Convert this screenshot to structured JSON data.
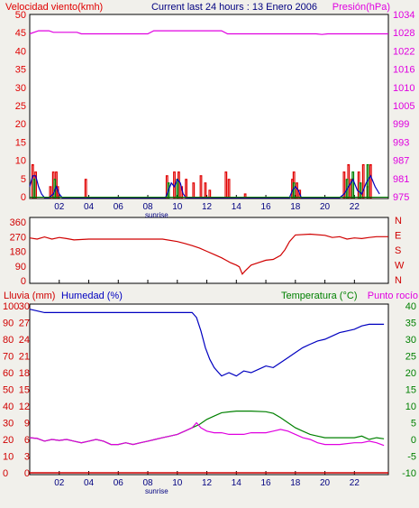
{
  "header": {
    "left_label": "Velocidad viento(kmh)",
    "title": "Current last 24 hours : 13 Enero 2006",
    "right_label": "Presión(hPa)"
  },
  "colors": {
    "wind": "#e00000",
    "wind_gust": "#008000",
    "wind_avg": "#0000c0",
    "pressure": "#e000e0",
    "direction": "#d00000",
    "humidity": "#0000c0",
    "temperature": "#008000",
    "dewpoint": "#e000e0",
    "rain": "#d00000",
    "plot_bg": "#ffffff",
    "page_bg": "#f1f0eb"
  },
  "x_axis": {
    "ticks": [
      "02",
      "04",
      "06",
      "08",
      "10",
      "12",
      "14",
      "16",
      "18",
      "20",
      "22"
    ],
    "tick_hours": [
      2,
      4,
      6,
      8,
      10,
      12,
      14,
      16,
      18,
      20,
      22
    ],
    "sunrise_label": "sunrise",
    "sunrise_hour": 8.6,
    "range": [
      0,
      24.3
    ]
  },
  "chart_data": [
    {
      "type": "line",
      "name_key": "wind_pressure",
      "left_axis": {
        "label": "Velocidad viento(kmh)",
        "ticks": [
          "0",
          "5",
          "10",
          "15",
          "20",
          "25",
          "30",
          "35",
          "40",
          "45",
          "50"
        ],
        "range": [
          0,
          50
        ]
      },
      "right_axis": {
        "label": "Presión(hPa)",
        "ticks": [
          "975",
          "981",
          "987",
          "993",
          "999",
          "1005",
          "1010",
          "1016",
          "1022",
          "1028",
          "1034"
        ],
        "range": [
          975,
          1034
        ]
      },
      "series": [
        {
          "name": "Presión(hPa)",
          "axis": "right",
          "x": [
            0,
            0.6,
            1.3,
            1.6,
            3.2,
            3.5,
            8.0,
            8.4,
            13.0,
            13.4,
            19.0,
            19.4,
            19.8,
            20.2,
            24.3
          ],
          "y": [
            1028,
            1029,
            1029,
            1028.5,
            1028.5,
            1028,
            1028,
            1029,
            1029,
            1028,
            1028,
            1028,
            1027.8,
            1028,
            1028
          ]
        },
        {
          "name": "wind-peak",
          "axis": "left",
          "kind": "bars",
          "x": [
            0.2,
            0.4,
            1.4,
            1.6,
            1.8,
            1.9,
            3.8,
            9.3,
            9.8,
            10.1,
            10.3,
            10.6,
            11.1,
            11.6,
            11.9,
            12.2,
            13.3,
            13.5,
            14.6,
            17.8,
            17.9,
            18.1,
            18.3,
            21.3,
            21.6,
            21.8,
            22.3,
            22.6,
            22.9,
            23.1
          ],
          "y": [
            9,
            7,
            3,
            7,
            7,
            3,
            5,
            6,
            7,
            7,
            3,
            5,
            4,
            6,
            4,
            2,
            7,
            5,
            1,
            5,
            7,
            4,
            2,
            7,
            9,
            5,
            7,
            9,
            3,
            9
          ]
        },
        {
          "name": "wind-gust",
          "axis": "left",
          "kind": "bars",
          "x": [
            0.3,
            1.7,
            9.4,
            10.0,
            17.9,
            21.5,
            21.9,
            22.4,
            22.9
          ],
          "y": [
            5,
            5,
            4,
            5,
            4,
            5,
            7,
            4,
            9
          ]
        },
        {
          "name": "wind-avg",
          "axis": "left",
          "x": [
            0,
            0.2,
            0.4,
            0.6,
            0.8,
            1.0,
            1.3,
            1.6,
            1.8,
            2.0,
            2.2,
            9.2,
            9.4,
            9.6,
            9.8,
            10.0,
            10.2,
            10.4,
            10.6,
            17.6,
            17.8,
            18.0,
            18.2,
            18.4,
            21.0,
            21.3,
            21.6,
            21.9,
            22.2,
            22.5,
            22.8,
            23.1,
            23.4,
            23.7
          ],
          "y": [
            3,
            6,
            6,
            3,
            1,
            0,
            0,
            1,
            3,
            1,
            0,
            0,
            2,
            4,
            3,
            5,
            4,
            1,
            0,
            0,
            2,
            3,
            2,
            0,
            0,
            1,
            3,
            5,
            2,
            1,
            4,
            6,
            3,
            1
          ]
        }
      ]
    },
    {
      "type": "line",
      "name_key": "direction",
      "left_axis": {
        "ticks": [
          "0",
          "90",
          "180",
          "270",
          "360"
        ],
        "range": [
          0,
          360
        ]
      },
      "right_axis": {
        "ticks": [
          "N",
          "W",
          "S",
          "E",
          "N"
        ]
      },
      "series": [
        {
          "name": "direction",
          "axis": "left",
          "x": [
            0,
            0.5,
            1.0,
            1.5,
            2.0,
            2.5,
            3.0,
            4.0,
            6.0,
            8.0,
            9.0,
            10.0,
            10.5,
            11.0,
            11.5,
            12.0,
            12.5,
            13.0,
            13.3,
            13.6,
            14.0,
            14.2,
            14.4,
            14.6,
            15.0,
            15.5,
            16.0,
            16.5,
            17.0,
            17.3,
            17.6,
            18.0,
            19.0,
            20.0,
            20.5,
            21.0,
            21.5,
            22.0,
            22.5,
            23.0,
            23.5,
            24.3
          ],
          "y": [
            262,
            255,
            268,
            255,
            265,
            258,
            250,
            255,
            255,
            255,
            255,
            240,
            228,
            215,
            200,
            180,
            160,
            140,
            125,
            110,
            95,
            85,
            40,
            60,
            95,
            110,
            125,
            130,
            155,
            190,
            240,
            280,
            285,
            278,
            265,
            270,
            255,
            262,
            258,
            265,
            270,
            270
          ]
        }
      ]
    },
    {
      "type": "line",
      "name_key": "humidity_temperature",
      "labels": {
        "rain": "Lluvia (mm)",
        "humidity": "Humedad (%)",
        "temperature": "Temperatura (°C)",
        "dewpoint": "Punto rocío"
      },
      "rain_axis": {
        "ticks": [
          "0",
          "10",
          "20",
          "30",
          "40",
          "50",
          "60",
          "70",
          "80",
          "90",
          "100"
        ],
        "range": [
          0,
          100
        ]
      },
      "humidity_axis": {
        "ticks": [
          "0",
          "3",
          "6",
          "9",
          "12",
          "15",
          "18",
          "21",
          "24",
          "27",
          "30"
        ],
        "range": [
          0,
          30
        ]
      },
      "temperature_axis": {
        "ticks": [
          "-10",
          "-5",
          "0",
          "5",
          "10",
          "15",
          "20",
          "25",
          "30",
          "35",
          "40"
        ],
        "range": [
          -10,
          40
        ]
      },
      "series": [
        {
          "name": "Humedad (%)",
          "axis": "rain",
          "x": [
            0,
            0.5,
            1.0,
            2.0,
            5.0,
            8.0,
            11.0,
            11.3,
            11.6,
            11.9,
            12.2,
            12.5,
            12.8,
            13.0,
            13.5,
            14.0,
            14.5,
            15.0,
            15.5,
            16.0,
            16.5,
            17.0,
            17.5,
            18.0,
            18.5,
            19.0,
            19.5,
            20.0,
            20.5,
            21.0,
            21.5,
            22.0,
            22.5,
            23.0,
            23.5,
            24.0
          ],
          "y": [
            98,
            97,
            96,
            96,
            96,
            96,
            96,
            93,
            85,
            75,
            68,
            63,
            60,
            58,
            60,
            58,
            61,
            60,
            62,
            64,
            63,
            66,
            69,
            72,
            75,
            77,
            79,
            80,
            82,
            84,
            85,
            86,
            88,
            89,
            89,
            89
          ]
        },
        {
          "name": "Temperatura (°C)",
          "axis": "temp",
          "x": [
            0,
            0.5,
            1.0,
            1.5,
            2.0,
            2.5,
            3.0,
            3.5,
            4.0,
            4.5,
            5.0,
            5.5,
            6.0,
            6.5,
            7.0,
            7.5,
            8.0,
            8.5,
            9.0,
            9.5,
            10.0,
            10.5,
            11.0,
            11.5,
            12.0,
            12.5,
            13.0,
            14.0,
            15.0,
            16.0,
            16.5,
            17.0,
            17.5,
            18.0,
            18.5,
            19.0,
            19.5,
            20.0,
            21.0,
            22.0,
            22.5,
            23.0,
            23.5,
            24.0
          ],
          "y": [
            0.5,
            0.3,
            -0.5,
            0,
            -0.3,
            0,
            -0.5,
            -1,
            -0.5,
            0,
            -0.5,
            -1.5,
            -1.5,
            -1,
            -1.5,
            -1,
            -0.5,
            0,
            0.5,
            1,
            1.5,
            2.5,
            3.5,
            4.5,
            6,
            7,
            8,
            8.5,
            8.5,
            8.3,
            7.8,
            6.5,
            5,
            3.5,
            2.5,
            1.5,
            1,
            0.5,
            0.5,
            0.5,
            1,
            0,
            0.5,
            0.2
          ]
        },
        {
          "name": "Punto rocío",
          "axis": "temp",
          "x": [
            0,
            0.5,
            1.0,
            1.5,
            2.0,
            2.5,
            3.0,
            3.5,
            4.0,
            4.5,
            5.0,
            5.5,
            6.0,
            6.5,
            7.0,
            7.5,
            8.0,
            8.5,
            9.0,
            9.5,
            10.0,
            10.5,
            11.0,
            11.3,
            11.6,
            12.0,
            12.5,
            13.0,
            13.5,
            14.0,
            14.5,
            15.0,
            15.5,
            16.0,
            16.5,
            17.0,
            17.5,
            18.0,
            18.5,
            19.0,
            19.5,
            20.0,
            21.0,
            22.0,
            22.5,
            23.0,
            23.5,
            24.0
          ],
          "y": [
            0.5,
            0.3,
            -0.5,
            0,
            -0.3,
            0,
            -0.5,
            -1,
            -0.5,
            0,
            -0.5,
            -1.5,
            -1.5,
            -1,
            -1.5,
            -1,
            -0.5,
            0,
            0.5,
            1,
            1.5,
            2.5,
            3.5,
            5,
            3.5,
            2.5,
            2,
            2,
            1.5,
            1.5,
            1.5,
            2,
            2,
            2,
            2.5,
            3,
            2.5,
            1.5,
            0.5,
            0,
            -1,
            -1.5,
            -1.5,
            -1,
            -1,
            -0.5,
            -1,
            -1.8
          ]
        },
        {
          "name": "Lluvia (mm)",
          "axis": "rain",
          "x": [
            0,
            24.3
          ],
          "y": [
            0,
            0
          ]
        }
      ]
    }
  ]
}
